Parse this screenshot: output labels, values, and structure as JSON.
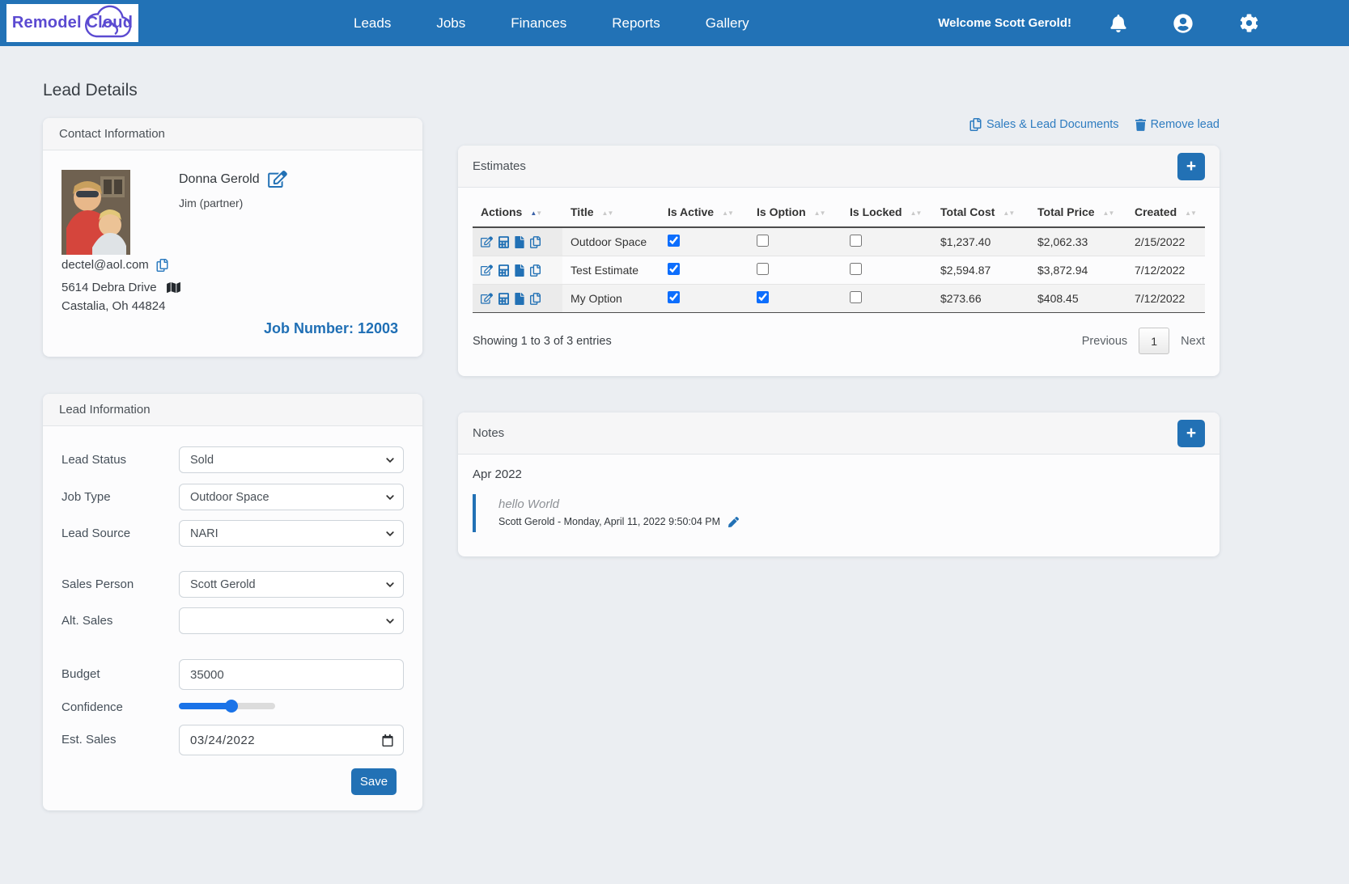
{
  "header": {
    "logo_text": "Remodel Cloud",
    "nav_items": [
      {
        "label": "Leads"
      },
      {
        "label": "Jobs"
      },
      {
        "label": "Finances"
      },
      {
        "label": "Reports"
      },
      {
        "label": "Gallery"
      }
    ],
    "welcome": "Welcome Scott Gerold!"
  },
  "page": {
    "title": "Lead Details",
    "documents_link": "Sales & Lead Documents",
    "remove_link": "Remove lead"
  },
  "contact": {
    "card_title": "Contact Information",
    "name": "Donna Gerold",
    "partner": "Jim (partner)",
    "email": "dectel@aol.com",
    "address_line1": "5614 Debra Drive",
    "address_line2": "Castalia, Oh 44824",
    "job_number": "Job Number: 12003"
  },
  "lead_info": {
    "card_title": "Lead Information",
    "lead_status": {
      "label": "Lead Status",
      "value": "Sold"
    },
    "job_type": {
      "label": "Job Type",
      "value": "Outdoor Space"
    },
    "lead_source": {
      "label": "Lead Source",
      "value": "NARI"
    },
    "sales_person": {
      "label": "Sales Person",
      "value": "Scott Gerold"
    },
    "alt_sales": {
      "label": "Alt. Sales",
      "value": ""
    },
    "budget": {
      "label": "Budget",
      "value": "35000"
    },
    "confidence": {
      "label": "Confidence",
      "percent": 55
    },
    "est_sales": {
      "label": "Est. Sales",
      "value": "03/24/2022"
    },
    "save_label": "Save"
  },
  "estimates": {
    "card_title": "Estimates",
    "columns": [
      "Actions",
      "Title",
      "Is Active",
      "Is Option",
      "Is Locked",
      "Total Cost",
      "Total Price",
      "Created"
    ],
    "rows": [
      {
        "title": "Outdoor Space",
        "is_active": true,
        "is_option": false,
        "is_locked": false,
        "total_cost": "$1,237.40",
        "total_price": "$2,062.33",
        "created": "2/15/2022"
      },
      {
        "title": "Test Estimate",
        "is_active": true,
        "is_option": false,
        "is_locked": false,
        "total_cost": "$2,594.87",
        "total_price": "$3,872.94",
        "created": "7/12/2022"
      },
      {
        "title": "My Option",
        "is_active": true,
        "is_option": true,
        "is_locked": false,
        "total_cost": "$273.66",
        "total_price": "$408.45",
        "created": "7/12/2022"
      }
    ],
    "footer": {
      "showing": "Showing 1 to 3 of 3 entries",
      "previous": "Previous",
      "page": "1",
      "next": "Next"
    }
  },
  "notes": {
    "card_title": "Notes",
    "group_date": "Apr 2022",
    "items": [
      {
        "text": "hello World",
        "meta": "Scott Gerold - Monday, April 11, 2022 9:50:04 PM"
      }
    ]
  },
  "colors": {
    "navbar": "#2272b6",
    "accent": "#2271b5",
    "logo_purple": "#5b4ad1",
    "link_blue": "#2e7cc0",
    "checkbox_blue": "#0d6efd"
  }
}
